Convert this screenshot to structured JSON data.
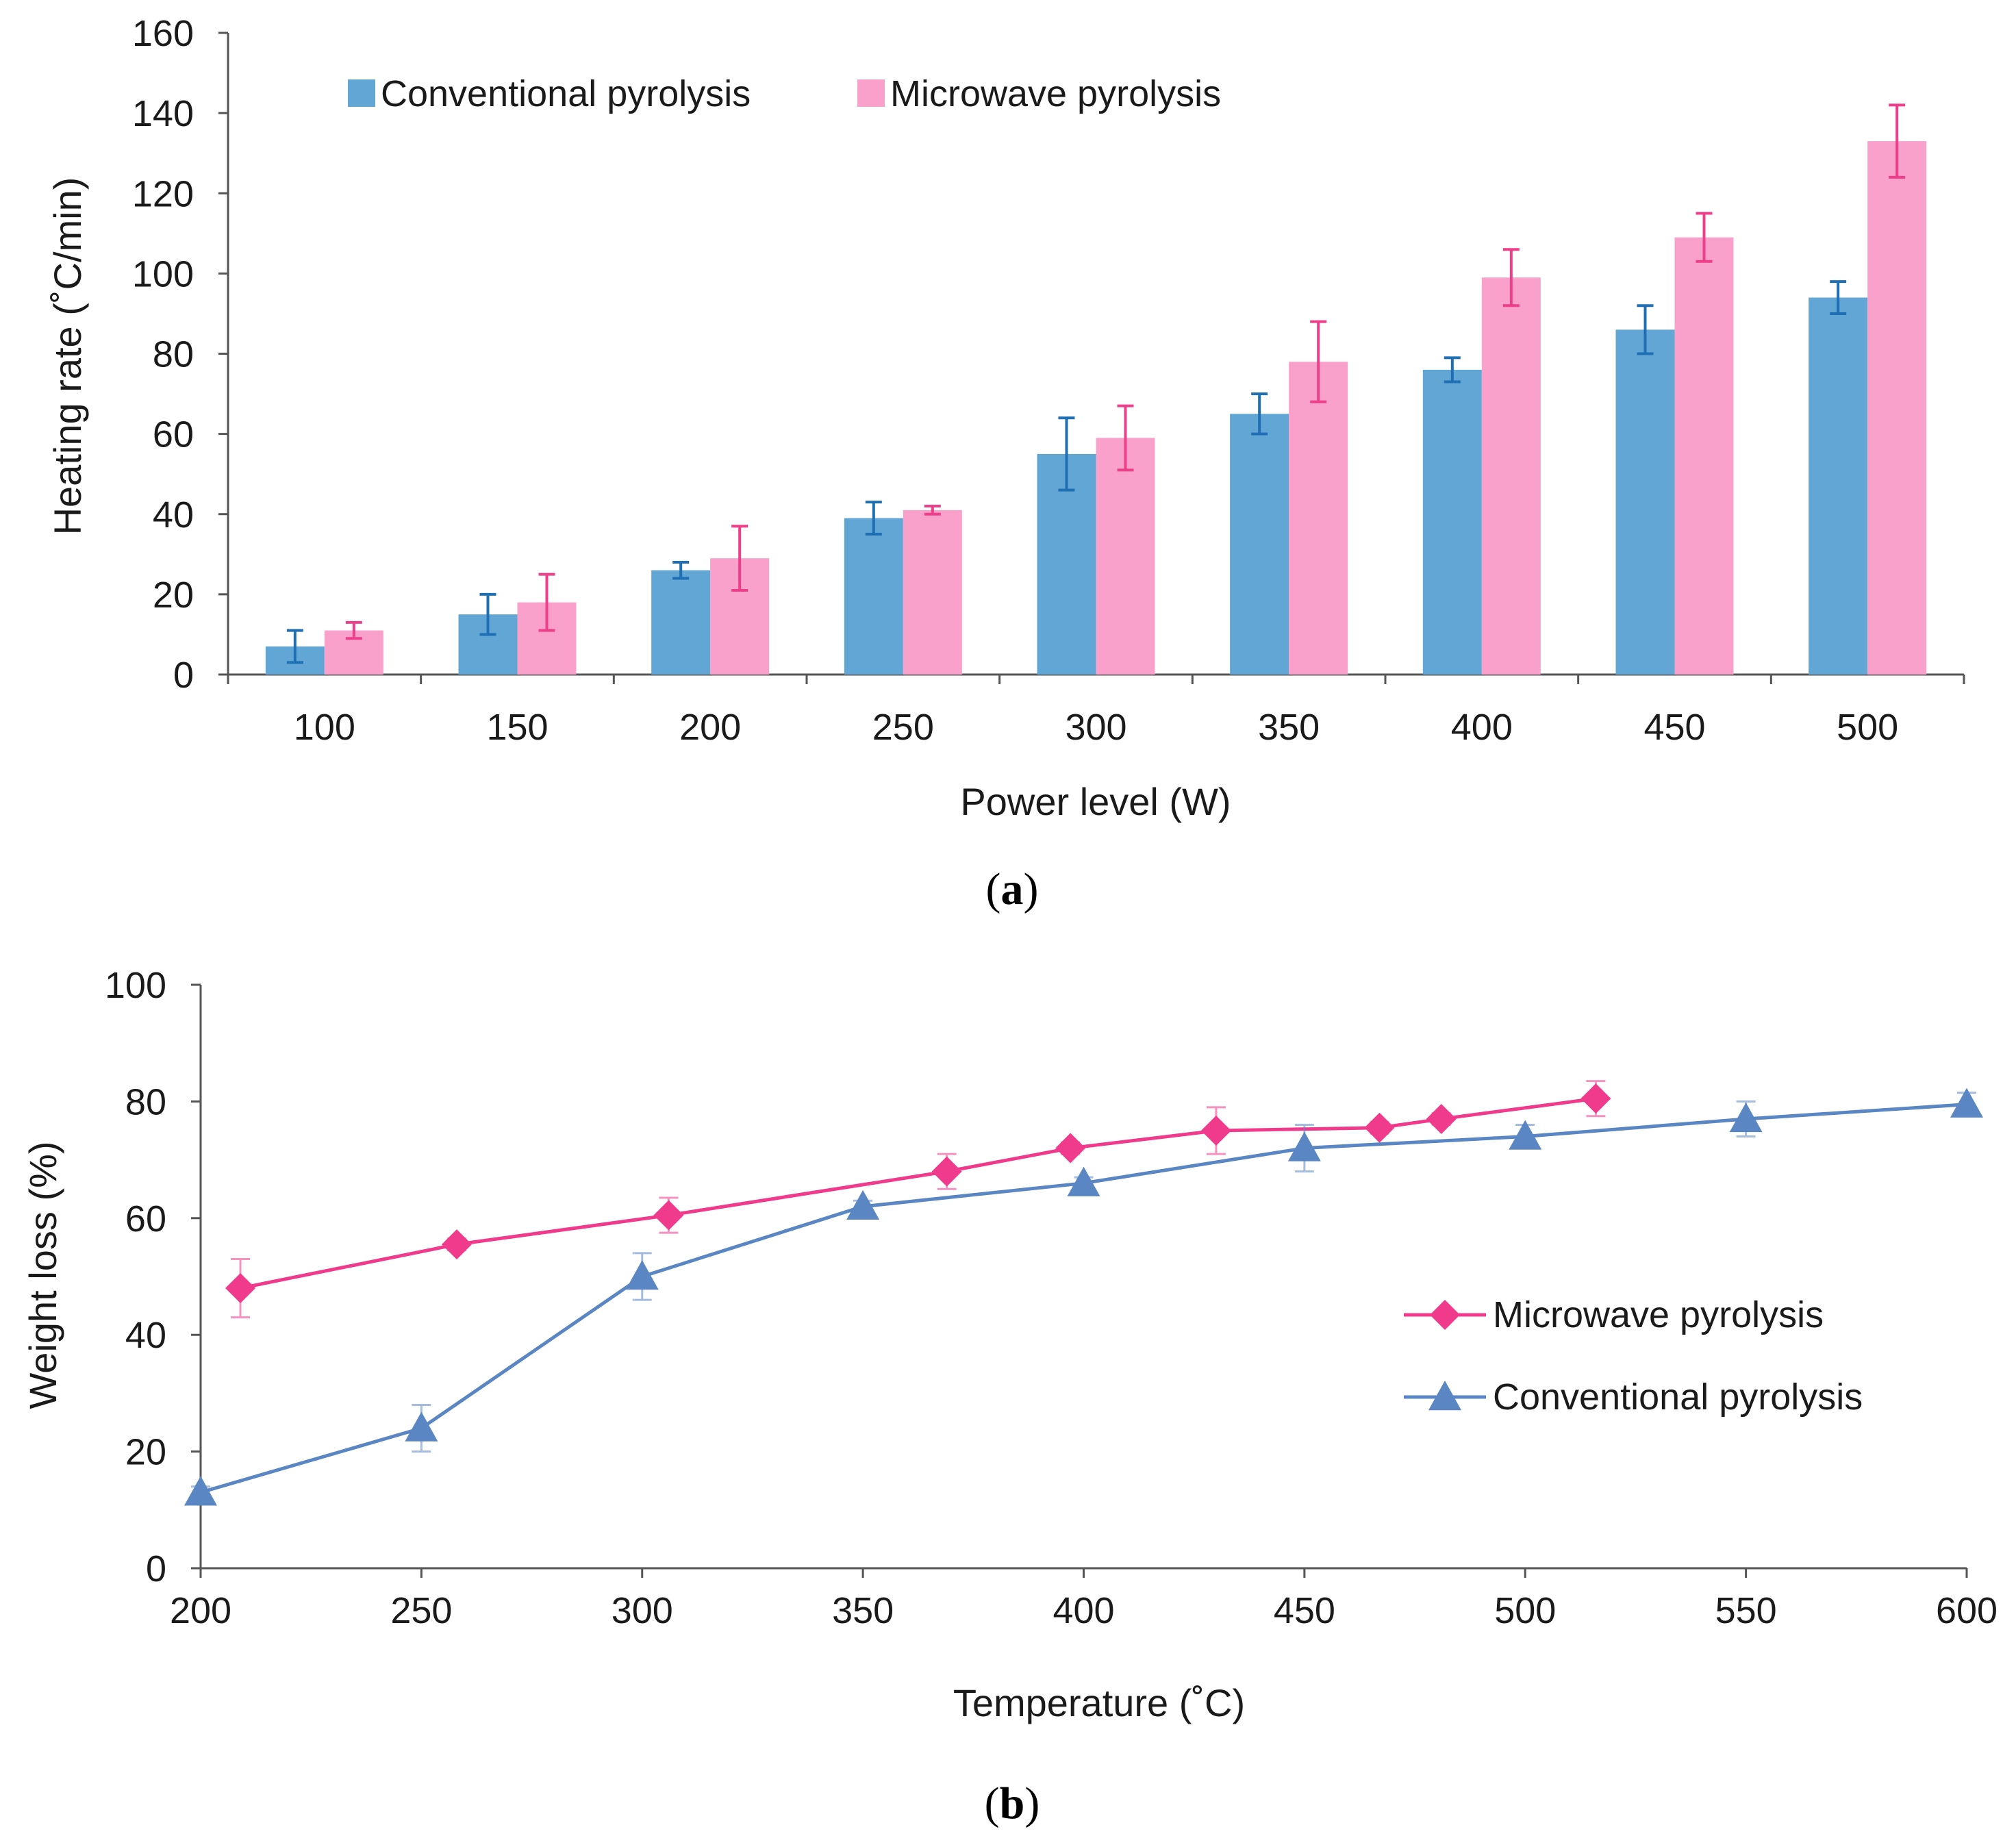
{
  "colors": {
    "conventional_bar": "#62a6d6",
    "conventional_err": "#1f6fb4",
    "microwave_bar": "#f9a0cb",
    "microwave_err": "#ee3f8a",
    "conventional_line": "#5a86c4",
    "microwave_line": "#f03a8c"
  },
  "chart_data": [
    {
      "type": "bar",
      "caption_open": "(",
      "caption_letter": "a",
      "caption_close": ")",
      "xlabel": "Power level (W)",
      "ylabel": "Heating rate (˚C/min)",
      "ylim": [
        0,
        160
      ],
      "yticks": [
        0,
        20,
        40,
        60,
        80,
        100,
        120,
        140,
        160
      ],
      "categories": [
        "100",
        "150",
        "200",
        "250",
        "300",
        "350",
        "400",
        "450",
        "500"
      ],
      "legend_position": "top-left",
      "series": [
        {
          "name": "Conventional pyrolysis",
          "values": [
            7,
            15,
            26,
            39,
            55,
            65,
            76,
            86,
            94
          ],
          "errors": [
            4,
            5,
            2,
            4,
            9,
            5,
            3,
            6,
            4
          ]
        },
        {
          "name": "Microwave pyrolysis",
          "values": [
            11,
            18,
            29,
            41,
            59,
            78,
            99,
            109,
            133
          ],
          "errors": [
            2,
            7,
            8,
            1,
            8,
            10,
            7,
            6,
            9
          ]
        }
      ]
    },
    {
      "type": "line",
      "caption_open": "(",
      "caption_letter": "b",
      "caption_close": ")",
      "xlabel": "Temperature (˚C)",
      "ylabel": "Weight loss (%)",
      "xlim": [
        200,
        600
      ],
      "ylim": [
        0,
        100
      ],
      "xticks": [
        200,
        250,
        300,
        350,
        400,
        450,
        500,
        550,
        600
      ],
      "yticks": [
        0,
        20,
        40,
        60,
        80,
        100
      ],
      "legend_position": "center-right",
      "series": [
        {
          "name": "Microwave pyrolysis",
          "marker": "diamond",
          "x": [
            209,
            258,
            306,
            369,
            397,
            430,
            467,
            481,
            516
          ],
          "y": [
            48,
            55.5,
            60.5,
            68,
            72,
            75,
            75.5,
            77,
            80.5
          ],
          "errors": [
            5,
            1,
            3,
            3,
            1,
            4,
            1,
            1,
            3
          ]
        },
        {
          "name": "Conventional pyrolysis",
          "marker": "triangle",
          "x": [
            200,
            250,
            300,
            350,
            400,
            450,
            500,
            550,
            600
          ],
          "y": [
            13,
            24,
            50,
            62,
            66,
            72,
            74,
            77,
            79.5
          ],
          "errors": [
            1,
            4,
            4,
            1,
            1,
            4,
            2,
            3,
            2
          ]
        }
      ]
    }
  ]
}
